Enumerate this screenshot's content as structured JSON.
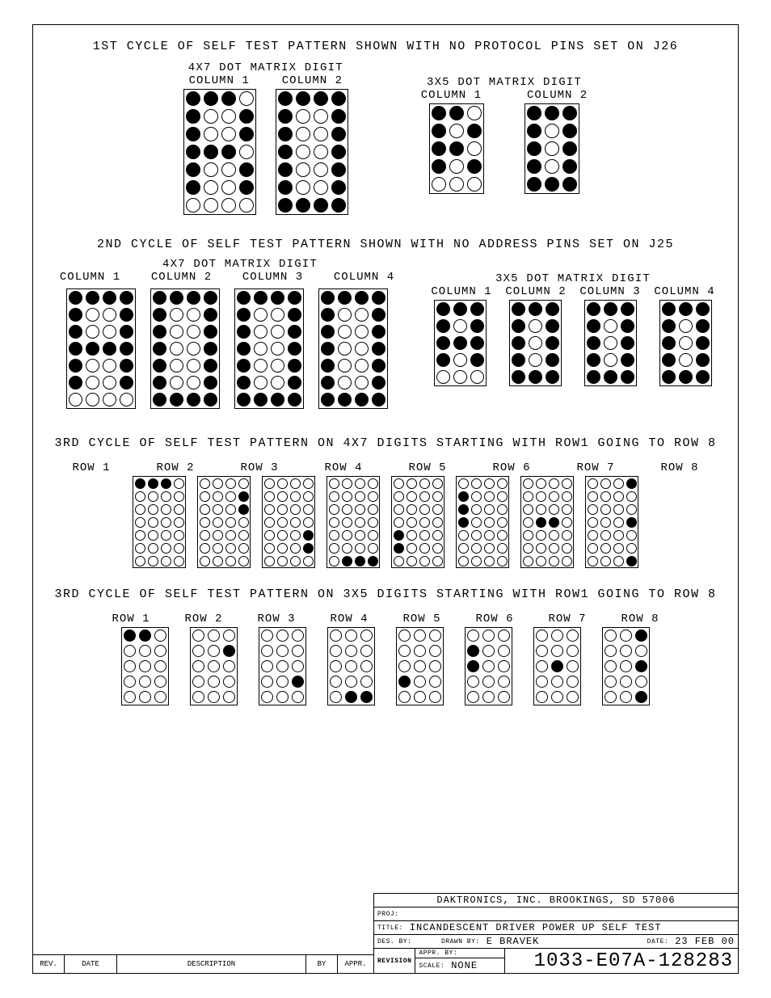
{
  "titles": {
    "cycle1": "1ST CYCLE OF SELF TEST PATTERN SHOWN WITH NO PROTOCOL PINS SET ON J26",
    "dm4x7": "4X7 DOT MATRIX DIGIT",
    "dm3x5": "3X5 DOT MATRIX DIGIT",
    "column1": "COLUMN 1",
    "column2": "COLUMN 2",
    "column3": "COLUMN 3",
    "column4": "COLUMN 4",
    "cycle2": "2ND CYCLE OF SELF TEST PATTERN SHOWN WITH NO ADDRESS PINS SET ON J25",
    "cycle3a": "3RD CYCLE OF SELF TEST PATTERN ON 4X7 DIGITS STARTING WITH ROW1 GOING TO ROW 8",
    "cycle3b": "3RD CYCLE OF SELF TEST PATTERN ON 3X5 DIGITS STARTING WITH ROW1 GOING TO ROW 8",
    "row1": "ROW 1",
    "row2": "ROW 2",
    "row3": "ROW 3",
    "row4": "ROW 4",
    "row5": "ROW 5",
    "row6": "ROW 6",
    "row7": "ROW 7",
    "row8": "ROW 8"
  },
  "style": {
    "dot_on": "#000000",
    "dot_off": "#ffffff",
    "border": "#000000",
    "m47": {
      "cols": 4,
      "rows": 7,
      "dot": 18,
      "pad": 2
    },
    "m47s": {
      "cols": 4,
      "rows": 7,
      "dot": 17,
      "pad": 2
    },
    "m47t": {
      "cols": 4,
      "rows": 7,
      "dot": 13,
      "pad": 1.5
    },
    "m35": {
      "cols": 3,
      "rows": 5,
      "dot": 18,
      "pad": 2
    },
    "m35s": {
      "cols": 3,
      "rows": 5,
      "dot": 17,
      "pad": 2
    },
    "m35t": {
      "cols": 3,
      "rows": 5,
      "dot": 15,
      "pad": 2
    }
  },
  "patterns": {
    "c1_47_col1": [
      [
        1,
        1,
        1,
        0
      ],
      [
        1,
        0,
        0,
        1
      ],
      [
        1,
        0,
        0,
        1
      ],
      [
        1,
        1,
        1,
        0
      ],
      [
        1,
        0,
        0,
        1
      ],
      [
        1,
        0,
        0,
        1
      ],
      [
        0,
        0,
        0,
        0
      ]
    ],
    "c1_47_col2": [
      [
        1,
        1,
        1,
        1
      ],
      [
        1,
        0,
        0,
        1
      ],
      [
        1,
        0,
        0,
        1
      ],
      [
        1,
        0,
        0,
        1
      ],
      [
        1,
        0,
        0,
        1
      ],
      [
        1,
        0,
        0,
        1
      ],
      [
        1,
        1,
        1,
        1
      ]
    ],
    "c1_35_col1": [
      [
        1,
        1,
        0
      ],
      [
        1,
        0,
        1
      ],
      [
        1,
        1,
        0
      ],
      [
        1,
        0,
        1
      ],
      [
        0,
        0,
        0
      ]
    ],
    "c1_35_col2": [
      [
        1,
        1,
        1
      ],
      [
        1,
        0,
        1
      ],
      [
        1,
        0,
        1
      ],
      [
        1,
        0,
        1
      ],
      [
        1,
        1,
        1
      ]
    ],
    "c2_47_col1": [
      [
        1,
        1,
        1,
        1
      ],
      [
        1,
        0,
        0,
        1
      ],
      [
        1,
        0,
        0,
        1
      ],
      [
        1,
        1,
        1,
        1
      ],
      [
        1,
        0,
        0,
        1
      ],
      [
        1,
        0,
        0,
        1
      ],
      [
        0,
        0,
        0,
        0
      ]
    ],
    "c2_47_col2": [
      [
        1,
        1,
        1,
        1
      ],
      [
        1,
        0,
        0,
        1
      ],
      [
        1,
        0,
        0,
        1
      ],
      [
        1,
        0,
        0,
        1
      ],
      [
        1,
        0,
        0,
        1
      ],
      [
        1,
        0,
        0,
        1
      ],
      [
        1,
        1,
        1,
        1
      ]
    ],
    "c2_47_col3": [
      [
        1,
        1,
        1,
        1
      ],
      [
        1,
        0,
        0,
        1
      ],
      [
        1,
        0,
        0,
        1
      ],
      [
        1,
        0,
        0,
        1
      ],
      [
        1,
        0,
        0,
        1
      ],
      [
        1,
        0,
        0,
        1
      ],
      [
        1,
        1,
        1,
        1
      ]
    ],
    "c2_47_col4": [
      [
        1,
        1,
        1,
        1
      ],
      [
        1,
        0,
        0,
        1
      ],
      [
        1,
        0,
        0,
        1
      ],
      [
        1,
        0,
        0,
        1
      ],
      [
        1,
        0,
        0,
        1
      ],
      [
        1,
        0,
        0,
        1
      ],
      [
        1,
        1,
        1,
        1
      ]
    ],
    "c2_35_col1": [
      [
        1,
        1,
        1
      ],
      [
        1,
        0,
        1
      ],
      [
        1,
        1,
        1
      ],
      [
        1,
        0,
        1
      ],
      [
        0,
        0,
        0
      ]
    ],
    "c2_35_col2": [
      [
        1,
        1,
        1
      ],
      [
        1,
        0,
        1
      ],
      [
        1,
        0,
        1
      ],
      [
        1,
        0,
        1
      ],
      [
        1,
        1,
        1
      ]
    ],
    "c2_35_col3": [
      [
        1,
        1,
        1
      ],
      [
        1,
        0,
        1
      ],
      [
        1,
        0,
        1
      ],
      [
        1,
        0,
        1
      ],
      [
        1,
        1,
        1
      ]
    ],
    "c2_35_col4": [
      [
        1,
        1,
        1
      ],
      [
        1,
        0,
        1
      ],
      [
        1,
        0,
        1
      ],
      [
        1,
        0,
        1
      ],
      [
        1,
        1,
        1
      ]
    ],
    "c3_47_r1": [
      [
        1,
        1,
        1,
        0
      ],
      [
        0,
        0,
        0,
        0
      ],
      [
        0,
        0,
        0,
        0
      ],
      [
        0,
        0,
        0,
        0
      ],
      [
        0,
        0,
        0,
        0
      ],
      [
        0,
        0,
        0,
        0
      ],
      [
        0,
        0,
        0,
        0
      ]
    ],
    "c3_47_r2": [
      [
        0,
        0,
        0,
        0
      ],
      [
        0,
        0,
        0,
        1
      ],
      [
        0,
        0,
        0,
        1
      ],
      [
        0,
        0,
        0,
        0
      ],
      [
        0,
        0,
        0,
        0
      ],
      [
        0,
        0,
        0,
        0
      ],
      [
        0,
        0,
        0,
        0
      ]
    ],
    "c3_47_r3": [
      [
        0,
        0,
        0,
        0
      ],
      [
        0,
        0,
        0,
        0
      ],
      [
        0,
        0,
        0,
        0
      ],
      [
        0,
        0,
        0,
        0
      ],
      [
        0,
        0,
        0,
        1
      ],
      [
        0,
        0,
        0,
        1
      ],
      [
        0,
        0,
        0,
        0
      ]
    ],
    "c3_47_r4": [
      [
        0,
        0,
        0,
        0
      ],
      [
        0,
        0,
        0,
        0
      ],
      [
        0,
        0,
        0,
        0
      ],
      [
        0,
        0,
        0,
        0
      ],
      [
        0,
        0,
        0,
        0
      ],
      [
        0,
        0,
        0,
        0
      ],
      [
        0,
        1,
        1,
        1
      ]
    ],
    "c3_47_r5": [
      [
        0,
        0,
        0,
        0
      ],
      [
        0,
        0,
        0,
        0
      ],
      [
        0,
        0,
        0,
        0
      ],
      [
        0,
        0,
        0,
        0
      ],
      [
        1,
        0,
        0,
        0
      ],
      [
        1,
        0,
        0,
        0
      ],
      [
        0,
        0,
        0,
        0
      ]
    ],
    "c3_47_r6": [
      [
        0,
        0,
        0,
        0
      ],
      [
        1,
        0,
        0,
        0
      ],
      [
        1,
        0,
        0,
        0
      ],
      [
        1,
        0,
        0,
        0
      ],
      [
        0,
        0,
        0,
        0
      ],
      [
        0,
        0,
        0,
        0
      ],
      [
        0,
        0,
        0,
        0
      ]
    ],
    "c3_47_r7": [
      [
        0,
        0,
        0,
        0
      ],
      [
        0,
        0,
        0,
        0
      ],
      [
        0,
        0,
        0,
        0
      ],
      [
        0,
        1,
        1,
        0
      ],
      [
        0,
        0,
        0,
        0
      ],
      [
        0,
        0,
        0,
        0
      ],
      [
        0,
        0,
        0,
        0
      ]
    ],
    "c3_47_r8": [
      [
        0,
        0,
        0,
        1
      ],
      [
        0,
        0,
        0,
        0
      ],
      [
        0,
        0,
        0,
        0
      ],
      [
        0,
        0,
        0,
        1
      ],
      [
        0,
        0,
        0,
        0
      ],
      [
        0,
        0,
        0,
        0
      ],
      [
        0,
        0,
        0,
        1
      ]
    ],
    "c3_35_r1": [
      [
        1,
        1,
        0
      ],
      [
        0,
        0,
        0
      ],
      [
        0,
        0,
        0
      ],
      [
        0,
        0,
        0
      ],
      [
        0,
        0,
        0
      ]
    ],
    "c3_35_r2": [
      [
        0,
        0,
        0
      ],
      [
        0,
        0,
        1
      ],
      [
        0,
        0,
        0
      ],
      [
        0,
        0,
        0
      ],
      [
        0,
        0,
        0
      ]
    ],
    "c3_35_r3": [
      [
        0,
        0,
        0
      ],
      [
        0,
        0,
        0
      ],
      [
        0,
        0,
        0
      ],
      [
        0,
        0,
        1
      ],
      [
        0,
        0,
        0
      ]
    ],
    "c3_35_r4": [
      [
        0,
        0,
        0
      ],
      [
        0,
        0,
        0
      ],
      [
        0,
        0,
        0
      ],
      [
        0,
        0,
        0
      ],
      [
        0,
        1,
        1
      ]
    ],
    "c3_35_r5": [
      [
        0,
        0,
        0
      ],
      [
        0,
        0,
        0
      ],
      [
        0,
        0,
        0
      ],
      [
        1,
        0,
        0
      ],
      [
        0,
        0,
        0
      ]
    ],
    "c3_35_r6": [
      [
        0,
        0,
        0
      ],
      [
        1,
        0,
        0
      ],
      [
        1,
        0,
        0
      ],
      [
        0,
        0,
        0
      ],
      [
        0,
        0,
        0
      ]
    ],
    "c3_35_r7": [
      [
        0,
        0,
        0
      ],
      [
        0,
        0,
        0
      ],
      [
        0,
        1,
        0
      ],
      [
        0,
        0,
        0
      ],
      [
        0,
        0,
        0
      ]
    ],
    "c3_35_r8": [
      [
        0,
        0,
        1
      ],
      [
        0,
        0,
        0
      ],
      [
        0,
        0,
        1
      ],
      [
        0,
        0,
        0
      ],
      [
        0,
        0,
        1
      ]
    ]
  },
  "titleblock": {
    "company": "DAKTRONICS, INC.   BROOKINGS, SD 57006",
    "proj_label": "PROJ:",
    "title_label": "TITLE:",
    "title_val": "INCANDESCENT DRIVER POWER UP SELF TEST",
    "des_by_label": "DES. BY:",
    "drawn_by_label": "DRAWN BY:",
    "drawn_by_val": "E BRAVEK",
    "date_label": "DATE:",
    "date_val": "23 FEB 00",
    "revision_label": "REVISION",
    "appr_by_label": "APPR. BY:",
    "scale_label": "SCALE:",
    "scale_val": "NONE",
    "drawing_no": "1033-E07A-128283",
    "rev": "REV.",
    "date": "DATE",
    "desc": "DESCRIPTION",
    "by": "BY",
    "appr": "APPR."
  }
}
